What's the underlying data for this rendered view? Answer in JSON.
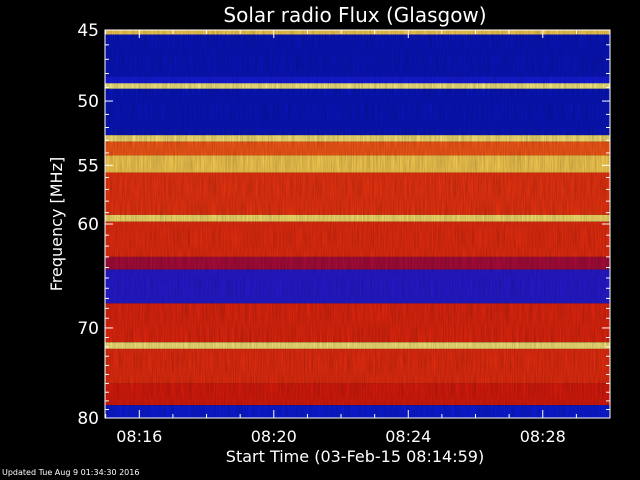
{
  "chart_data": {
    "type": "heatmap",
    "title": "Solar radio Flux (Glasgow)",
    "xlabel": "Start Time (03-Feb-15 08:14:59)",
    "ylabel": "Frequency [MHz]",
    "x_ticks": [
      "08:16",
      "08:20",
      "08:24",
      "08:28"
    ],
    "x_tick_minutes": [
      16,
      20,
      24,
      28
    ],
    "xlim_minutes": [
      14.98,
      30.0
    ],
    "y_ticks": [
      45,
      50,
      55,
      60,
      70,
      80
    ],
    "ylim": [
      45,
      80
    ],
    "y_scale": "log",
    "y_inverted": true,
    "grid": false,
    "colormap": [
      "#000a8c",
      "#0f1ee6",
      "#5a14b4",
      "#d20a0a",
      "#ff4614",
      "#ffb428",
      "#ffff96"
    ],
    "frequency_bands": [
      {
        "f_start": 45.0,
        "f_end": 45.3,
        "level": 0.9
      },
      {
        "f_start": 45.3,
        "f_end": 48.2,
        "level": 0.1
      },
      {
        "f_start": 48.2,
        "f_end": 49.0,
        "level": 0.18
      },
      {
        "f_start": 48.7,
        "f_end": 49.1,
        "level": 0.97
      },
      {
        "f_start": 49.1,
        "f_end": 52.6,
        "level": 0.1
      },
      {
        "f_start": 52.6,
        "f_end": 53.1,
        "level": 0.95
      },
      {
        "f_start": 53.1,
        "f_end": 54.2,
        "level": 0.7
      },
      {
        "f_start": 54.2,
        "f_end": 55.6,
        "level": 0.9
      },
      {
        "f_start": 55.6,
        "f_end": 59.2,
        "level": 0.62
      },
      {
        "f_start": 59.2,
        "f_end": 59.8,
        "level": 0.94
      },
      {
        "f_start": 59.8,
        "f_end": 63.0,
        "level": 0.6
      },
      {
        "f_start": 63.0,
        "f_end": 64.2,
        "level": 0.45
      },
      {
        "f_start": 64.2,
        "f_end": 67.5,
        "level": 0.22
      },
      {
        "f_start": 67.5,
        "f_end": 71.5,
        "level": 0.58
      },
      {
        "f_start": 71.5,
        "f_end": 72.2,
        "level": 0.96
      },
      {
        "f_start": 72.2,
        "f_end": 76.0,
        "level": 0.6
      },
      {
        "f_start": 76.0,
        "f_end": 78.5,
        "level": 0.55
      },
      {
        "f_start": 78.5,
        "f_end": 80.0,
        "level": 0.15
      }
    ]
  },
  "footer": {
    "updated": "Updated Tue Aug  9 01:34:30 2016"
  }
}
